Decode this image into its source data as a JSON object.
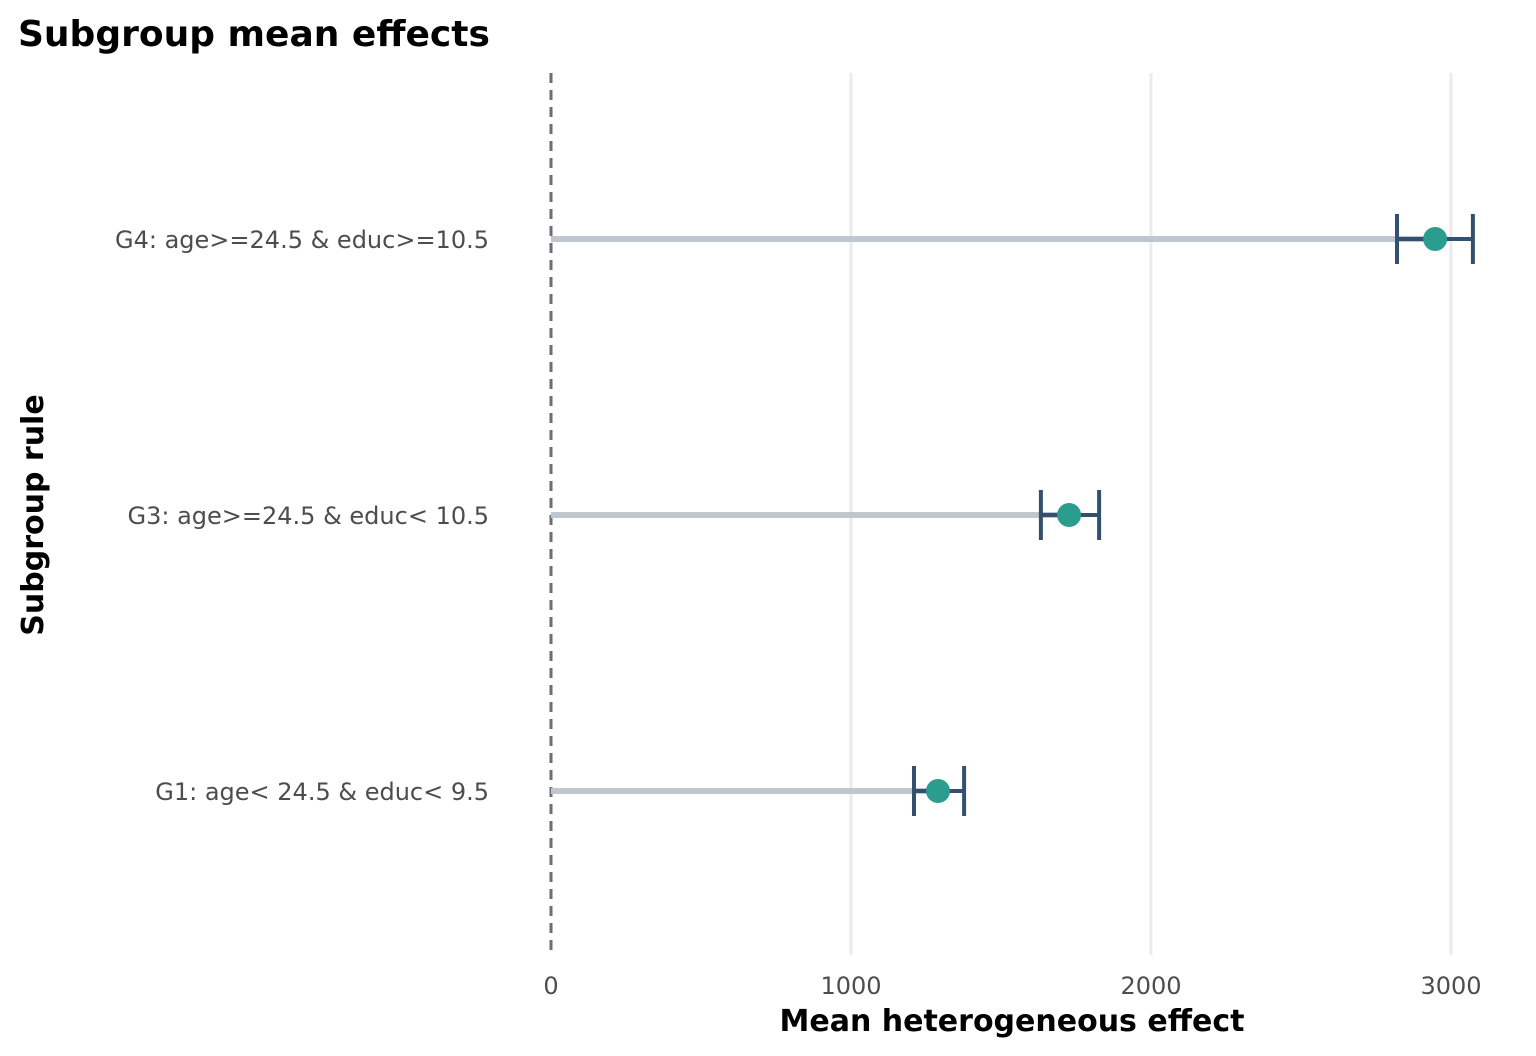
{
  "chart_data": {
    "type": "errorbar-dot",
    "title": "Subgroup mean effects",
    "xlabel": "Mean heterogeneous effect",
    "ylabel": "Subgroup rule",
    "xlim": [
      -150,
      3130
    ],
    "xticks": [
      0,
      1000,
      2000,
      3000
    ],
    "xtick_labels": [
      "0",
      "1000",
      "2000",
      "3000"
    ],
    "reference_line": 0,
    "grid": "vertical major",
    "categories": [
      "G4: age>=24.5 & educ>=10.5",
      "G3: age>=24.5 & educ< 10.5",
      "G1: age< 24.5 & educ< 9.5"
    ],
    "values": [
      2947,
      1727,
      1290
    ],
    "lower": [
      2820,
      1633,
      1210
    ],
    "upper": [
      3073,
      1827,
      1377
    ],
    "colors": {
      "point": "#2a9d8f",
      "errorbar": "#34506f",
      "segment": "#bfc6cd",
      "refline": "#6b6e78",
      "grid": "#ebebeb"
    }
  }
}
